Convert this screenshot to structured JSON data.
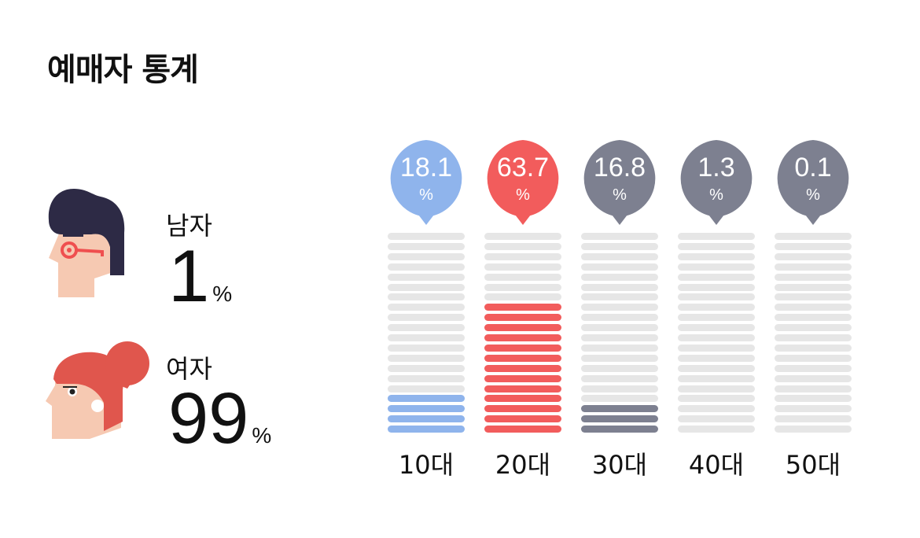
{
  "title": "예매자 통계",
  "gender": {
    "male": {
      "label": "남자",
      "value": "1",
      "unit": "%",
      "icon": "male-avatar-icon"
    },
    "female": {
      "label": "여자",
      "value": "99",
      "unit": "%",
      "icon": "female-avatar-icon"
    }
  },
  "colors": {
    "empty": "#e6e6e6",
    "teen": "#8fb4ec",
    "highlight": "#f25c5c",
    "default": "#7d8090"
  },
  "chart_data": {
    "type": "bar",
    "title": "",
    "categories": [
      "10대",
      "20대",
      "30대",
      "40대",
      "50대"
    ],
    "values": [
      18.1,
      63.7,
      16.8,
      1.3,
      0.1
    ],
    "value_labels": [
      "18.1",
      "63.7",
      "16.8",
      "1.3",
      "0.1"
    ],
    "unit": "%",
    "colors": [
      "#8fb4ec",
      "#f25c5c",
      "#7d8090",
      "#7d8090",
      "#7d8090"
    ],
    "ylim": [
      0,
      100
    ],
    "segments_per_bar": 20,
    "grid": false,
    "legend": "none"
  }
}
